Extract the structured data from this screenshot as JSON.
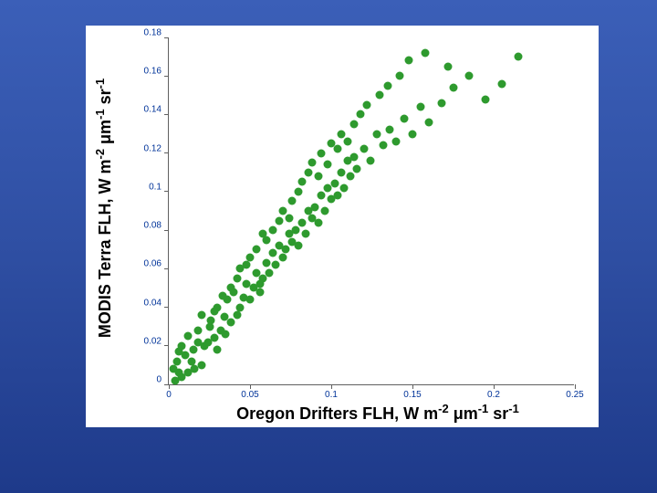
{
  "slide": {
    "background_gradient": [
      "#3b5fb8",
      "#2f4fa3",
      "#1e3a8a"
    ]
  },
  "chart": {
    "type": "scatter",
    "background_color": "#ffffff",
    "axis_color": "#606060",
    "tick_label_color": "#003399",
    "tick_label_fontsize": 10,
    "axis_label_fontsize": 18,
    "axis_label_color": "#000000",
    "marker_color": "#2e9a2e",
    "marker_radius": 4.5,
    "xlim": [
      0,
      0.25
    ],
    "ylim": [
      0,
      0.18
    ],
    "xticks": [
      0,
      0.05,
      0.1,
      0.15,
      0.2,
      0.25
    ],
    "yticks": [
      0,
      0.02,
      0.04,
      0.06,
      0.08,
      0.1,
      0.12,
      0.14,
      0.16,
      0.18
    ],
    "x_label_plain": "Oregon Drifters FLH, W m",
    "x_label_sup1": "-2",
    "x_label_mid": " μm",
    "x_label_sup2": "-1",
    "x_label_end": " sr",
    "x_label_sup3": "-1",
    "y_label_plain": "MODIS Terra FLH, W m",
    "y_label_sup1": "-2",
    "y_label_mid": " μm",
    "y_label_sup2": "-1",
    "y_label_end": " sr",
    "y_label_sup3": "-1",
    "points": [
      [
        0.004,
        0.002
      ],
      [
        0.003,
        0.008
      ],
      [
        0.006,
        0.006
      ],
      [
        0.008,
        0.004
      ],
      [
        0.005,
        0.012
      ],
      [
        0.01,
        0.015
      ],
      [
        0.012,
        0.006
      ],
      [
        0.015,
        0.018
      ],
      [
        0.008,
        0.02
      ],
      [
        0.014,
        0.012
      ],
      [
        0.018,
        0.022
      ],
      [
        0.012,
        0.025
      ],
      [
        0.02,
        0.01
      ],
      [
        0.006,
        0.017
      ],
      [
        0.016,
        0.008
      ],
      [
        0.022,
        0.02
      ],
      [
        0.025,
        0.03
      ],
      [
        0.018,
        0.028
      ],
      [
        0.028,
        0.024
      ],
      [
        0.03,
        0.018
      ],
      [
        0.026,
        0.033
      ],
      [
        0.02,
        0.036
      ],
      [
        0.032,
        0.028
      ],
      [
        0.024,
        0.022
      ],
      [
        0.034,
        0.035
      ],
      [
        0.03,
        0.04
      ],
      [
        0.038,
        0.032
      ],
      [
        0.028,
        0.038
      ],
      [
        0.035,
        0.026
      ],
      [
        0.036,
        0.044
      ],
      [
        0.04,
        0.048
      ],
      [
        0.042,
        0.036
      ],
      [
        0.033,
        0.046
      ],
      [
        0.044,
        0.04
      ],
      [
        0.038,
        0.05
      ],
      [
        0.046,
        0.045
      ],
      [
        0.048,
        0.052
      ],
      [
        0.042,
        0.055
      ],
      [
        0.05,
        0.044
      ],
      [
        0.044,
        0.06
      ],
      [
        0.052,
        0.05
      ],
      [
        0.054,
        0.058
      ],
      [
        0.048,
        0.062
      ],
      [
        0.056,
        0.048
      ],
      [
        0.05,
        0.066
      ],
      [
        0.058,
        0.055
      ],
      [
        0.06,
        0.063
      ],
      [
        0.054,
        0.07
      ],
      [
        0.062,
        0.058
      ],
      [
        0.056,
        0.052
      ],
      [
        0.064,
        0.068
      ],
      [
        0.06,
        0.075
      ],
      [
        0.066,
        0.062
      ],
      [
        0.058,
        0.078
      ],
      [
        0.068,
        0.072
      ],
      [
        0.07,
        0.066
      ],
      [
        0.064,
        0.08
      ],
      [
        0.072,
        0.07
      ],
      [
        0.074,
        0.078
      ],
      [
        0.068,
        0.085
      ],
      [
        0.076,
        0.074
      ],
      [
        0.07,
        0.09
      ],
      [
        0.078,
        0.08
      ],
      [
        0.08,
        0.072
      ],
      [
        0.074,
        0.086
      ],
      [
        0.082,
        0.084
      ],
      [
        0.076,
        0.095
      ],
      [
        0.084,
        0.078
      ],
      [
        0.086,
        0.09
      ],
      [
        0.08,
        0.1
      ],
      [
        0.088,
        0.086
      ],
      [
        0.082,
        0.105
      ],
      [
        0.09,
        0.092
      ],
      [
        0.092,
        0.084
      ],
      [
        0.086,
        0.11
      ],
      [
        0.094,
        0.098
      ],
      [
        0.088,
        0.115
      ],
      [
        0.096,
        0.09
      ],
      [
        0.098,
        0.102
      ],
      [
        0.092,
        0.108
      ],
      [
        0.1,
        0.096
      ],
      [
        0.094,
        0.12
      ],
      [
        0.102,
        0.104
      ],
      [
        0.104,
        0.098
      ],
      [
        0.098,
        0.114
      ],
      [
        0.106,
        0.11
      ],
      [
        0.1,
        0.125
      ],
      [
        0.108,
        0.102
      ],
      [
        0.11,
        0.116
      ],
      [
        0.104,
        0.122
      ],
      [
        0.112,
        0.108
      ],
      [
        0.106,
        0.13
      ],
      [
        0.114,
        0.118
      ],
      [
        0.116,
        0.112
      ],
      [
        0.11,
        0.126
      ],
      [
        0.12,
        0.122
      ],
      [
        0.114,
        0.135
      ],
      [
        0.124,
        0.116
      ],
      [
        0.128,
        0.13
      ],
      [
        0.118,
        0.14
      ],
      [
        0.132,
        0.124
      ],
      [
        0.122,
        0.145
      ],
      [
        0.136,
        0.132
      ],
      [
        0.14,
        0.126
      ],
      [
        0.13,
        0.15
      ],
      [
        0.145,
        0.138
      ],
      [
        0.135,
        0.155
      ],
      [
        0.15,
        0.13
      ],
      [
        0.155,
        0.144
      ],
      [
        0.142,
        0.16
      ],
      [
        0.16,
        0.136
      ],
      [
        0.148,
        0.168
      ],
      [
        0.168,
        0.146
      ],
      [
        0.175,
        0.154
      ],
      [
        0.158,
        0.172
      ],
      [
        0.185,
        0.16
      ],
      [
        0.195,
        0.148
      ],
      [
        0.172,
        0.165
      ],
      [
        0.205,
        0.156
      ],
      [
        0.215,
        0.17
      ]
    ]
  }
}
